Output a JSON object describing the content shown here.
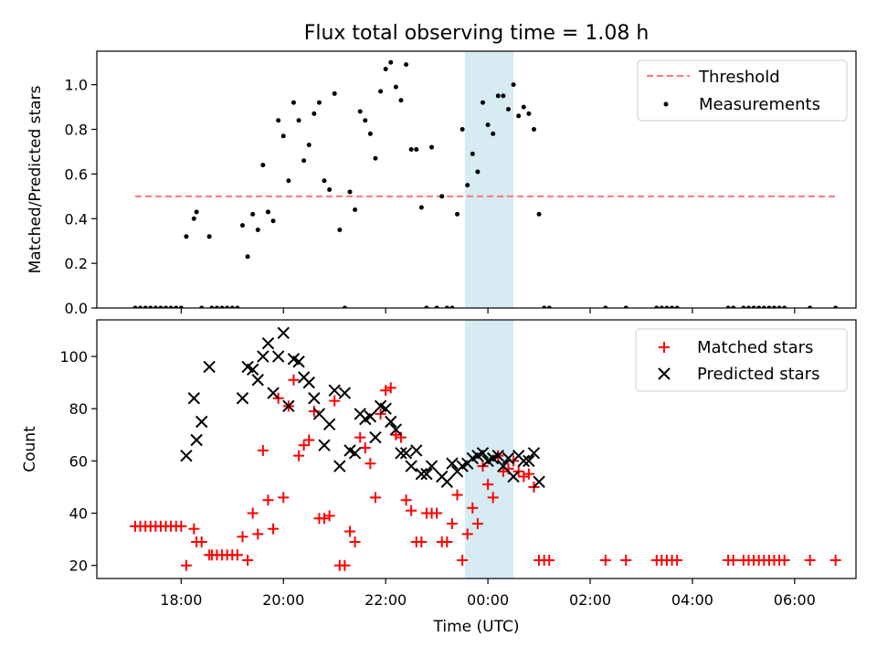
{
  "chart_data": [
    {
      "type": "scatter",
      "title": "Flux total observing time = 1.08 h",
      "xlabel": "",
      "ylabel": "Matched/Predicted stars",
      "ylim": [
        0,
        1.15
      ],
      "yticks": [
        "0.0",
        "0.2",
        "0.4",
        "0.6",
        "0.8",
        "1.0"
      ],
      "xlim": [
        16.35,
        31.2
      ],
      "highlight_span": [
        23.55,
        24.5
      ],
      "highlight_color": "#add8e6",
      "legend_position": "upper-right",
      "series": [
        {
          "name": "Threshold",
          "kind": "dashed-line",
          "color": "#ff7777",
          "x": [
            17.1,
            30.8
          ],
          "y": [
            0.5,
            0.5
          ]
        },
        {
          "name": "Measurements",
          "kind": "dots",
          "color": "#000000",
          "x": [
            17.1,
            17.2,
            17.3,
            17.4,
            17.5,
            17.6,
            17.7,
            17.8,
            17.9,
            18.0,
            18.1,
            18.25,
            18.3,
            18.4,
            18.55,
            18.6,
            18.7,
            18.8,
            18.9,
            19.0,
            19.1,
            19.2,
            19.3,
            19.4,
            19.5,
            19.6,
            19.7,
            19.8,
            19.9,
            20.0,
            20.1,
            20.2,
            20.3,
            20.4,
            20.5,
            20.6,
            20.7,
            20.8,
            20.9,
            21.0,
            21.1,
            21.2,
            21.3,
            21.4,
            21.5,
            21.6,
            21.7,
            21.8,
            21.9,
            22.0,
            22.1,
            22.2,
            22.3,
            22.4,
            22.5,
            22.6,
            22.7,
            22.8,
            22.9,
            23.0,
            23.1,
            23.2,
            23.3,
            23.4,
            23.5,
            23.6,
            23.7,
            23.8,
            23.9,
            24.0,
            24.1,
            24.2,
            24.3,
            24.4,
            24.5,
            24.6,
            24.7,
            24.8,
            24.9,
            25.0,
            25.1,
            25.2,
            26.3,
            26.7,
            27.3,
            27.4,
            27.5,
            27.6,
            27.7,
            28.7,
            28.8,
            29.0,
            29.1,
            29.2,
            29.3,
            29.4,
            29.5,
            29.6,
            29.7,
            29.8,
            30.3,
            30.8
          ],
          "y": [
            0.0,
            0.0,
            0.0,
            0.0,
            0.0,
            0.0,
            0.0,
            0.0,
            0.0,
            0.0,
            0.32,
            0.4,
            0.43,
            0.0,
            0.32,
            0.0,
            0.0,
            0.0,
            0.0,
            0.0,
            0.0,
            0.37,
            0.23,
            0.42,
            0.35,
            0.64,
            0.43,
            0.39,
            0.84,
            0.77,
            0.57,
            0.92,
            0.84,
            0.66,
            0.73,
            0.87,
            0.92,
            0.57,
            0.53,
            0.96,
            0.35,
            0.0,
            0.52,
            0.44,
            0.88,
            0.84,
            0.78,
            0.67,
            0.97,
            1.07,
            1.1,
            0.99,
            0.93,
            1.09,
            0.71,
            0.71,
            0.45,
            0.0,
            0.72,
            0.0,
            0.5,
            0.0,
            0.0,
            0.42,
            0.8,
            0.55,
            0.69,
            0.61,
            0.92,
            0.82,
            0.78,
            0.95,
            0.95,
            0.89,
            1.0,
            0.86,
            0.9,
            0.87,
            0.8,
            0.42,
            0.0,
            0.0,
            0.0,
            0.0,
            0.0,
            0.0,
            0.0,
            0.0,
            0.0,
            0.0,
            0.0,
            0.0,
            0.0,
            0.0,
            0.0,
            0.0,
            0.0,
            0.0,
            0.0,
            0.0,
            0.0,
            0.0
          ]
        }
      ]
    },
    {
      "type": "scatter",
      "title": "",
      "xlabel": "Time (UTC)",
      "ylabel": "Count",
      "ylim": [
        15,
        114
      ],
      "yticks": [
        "20",
        "40",
        "60",
        "80",
        "100"
      ],
      "xticks": [
        "18:00",
        "20:00",
        "22:00",
        "00:00",
        "02:00",
        "04:00",
        "06:00"
      ],
      "xtick_values": [
        18,
        20,
        22,
        24,
        26,
        28,
        30
      ],
      "xlim": [
        16.35,
        31.2
      ],
      "highlight_span": [
        23.55,
        24.5
      ],
      "highlight_color": "#add8e6",
      "legend_position": "upper-right",
      "series": [
        {
          "name": "Matched stars",
          "marker": "+",
          "color": "#ff0000",
          "x": [
            17.1,
            17.2,
            17.3,
            17.4,
            17.5,
            17.6,
            17.7,
            17.8,
            17.9,
            18.0,
            18.1,
            18.25,
            18.3,
            18.4,
            18.55,
            18.6,
            18.7,
            18.8,
            18.9,
            19.0,
            19.1,
            19.2,
            19.3,
            19.4,
            19.5,
            19.6,
            19.7,
            19.8,
            19.9,
            20.0,
            20.1,
            20.2,
            20.3,
            20.4,
            20.5,
            20.6,
            20.7,
            20.8,
            20.9,
            21.0,
            21.1,
            21.2,
            21.3,
            21.4,
            21.5,
            21.6,
            21.7,
            21.8,
            21.9,
            22.0,
            22.1,
            22.2,
            22.3,
            22.4,
            22.5,
            22.6,
            22.7,
            22.8,
            22.9,
            23.0,
            23.1,
            23.2,
            23.3,
            23.4,
            23.5,
            23.6,
            23.7,
            23.8,
            23.9,
            24.0,
            24.1,
            24.2,
            24.3,
            24.4,
            24.5,
            24.6,
            24.7,
            24.8,
            24.9,
            25.0,
            25.1,
            25.2,
            26.3,
            26.7,
            27.3,
            27.4,
            27.5,
            27.6,
            27.7,
            28.7,
            28.8,
            29.0,
            29.1,
            29.2,
            29.3,
            29.4,
            29.5,
            29.6,
            29.7,
            29.8,
            30.3,
            30.8
          ],
          "y": [
            35,
            35,
            35,
            35,
            35,
            35,
            35,
            35,
            35,
            35,
            20,
            34,
            29,
            29,
            24,
            24,
            24,
            24,
            24,
            24,
            24,
            31,
            22,
            40,
            32,
            64,
            45,
            34,
            84,
            46,
            81,
            91,
            62,
            66,
            68,
            79,
            38,
            38,
            39,
            83,
            20,
            20,
            33,
            29,
            69,
            65,
            59,
            46,
            78,
            87,
            88,
            70,
            69,
            45,
            41,
            29,
            29,
            40,
            40,
            40,
            29,
            29,
            36,
            47,
            22,
            32,
            42,
            36,
            58,
            51,
            46,
            62,
            56,
            57,
            60,
            56,
            54,
            55,
            50,
            22,
            22,
            22,
            22,
            22,
            22,
            22,
            22,
            22,
            22,
            22,
            22,
            22,
            22,
            22,
            22,
            22,
            22,
            22,
            22,
            22,
            22,
            22
          ]
        },
        {
          "name": "Predicted stars",
          "marker": "x",
          "color": "#000000",
          "x": [
            18.1,
            18.25,
            18.3,
            18.4,
            18.55,
            19.2,
            19.3,
            19.4,
            19.5,
            19.6,
            19.7,
            19.8,
            19.9,
            20.0,
            20.1,
            20.2,
            20.3,
            20.4,
            20.5,
            20.6,
            20.7,
            20.8,
            20.9,
            21.0,
            21.1,
            21.2,
            21.3,
            21.4,
            21.5,
            21.6,
            21.7,
            21.8,
            21.9,
            22.0,
            22.1,
            22.2,
            22.3,
            22.4,
            22.5,
            22.6,
            22.7,
            22.8,
            22.9,
            23.1,
            23.2,
            23.3,
            23.4,
            23.5,
            23.6,
            23.7,
            23.8,
            23.9,
            24.0,
            24.1,
            24.2,
            24.3,
            24.4,
            24.5,
            24.6,
            24.7,
            24.8,
            24.9,
            25.0
          ],
          "y": [
            62,
            84,
            68,
            75,
            96,
            84,
            96,
            95,
            91,
            100,
            105,
            86,
            100,
            109,
            81,
            99,
            98,
            92,
            90,
            84,
            78,
            66,
            74,
            87,
            58,
            86,
            64,
            63,
            78,
            76,
            77,
            69,
            81,
            80,
            75,
            72,
            63,
            63,
            58,
            64,
            55,
            55,
            58,
            54,
            52,
            59,
            56,
            58,
            59,
            61,
            62,
            63,
            60,
            61,
            62,
            58,
            61,
            54,
            62,
            60,
            60,
            63,
            52
          ]
        }
      ]
    }
  ]
}
